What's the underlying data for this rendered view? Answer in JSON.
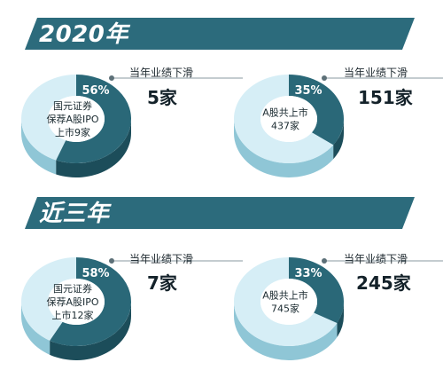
{
  "sections": [
    {
      "title": "2020年"
    },
    {
      "title": "近三年"
    }
  ],
  "colors": {
    "banner": "#2c6b7c",
    "highlight": "#2a6878",
    "highlight_side": "#1c4d5a",
    "rest_top": "#d6eef6",
    "rest_side": "#8fc6d6",
    "center": "#ffffff",
    "callout_line": "#8a9aa2"
  },
  "chart_data": [
    {
      "type": "pie",
      "group": "2020年",
      "center_label": [
        "国元证券",
        "保荐A股IPO",
        "上市9家"
      ],
      "percent_label": "56%",
      "values": [
        56,
        44
      ],
      "callout": {
        "label": "当年业绩下滑",
        "value": "5家"
      }
    },
    {
      "type": "pie",
      "group": "2020年",
      "center_label": [
        "A股共上市",
        "437家"
      ],
      "percent_label": "35%",
      "values": [
        35,
        65
      ],
      "callout": {
        "label": "当年业绩下滑",
        "value": "151家"
      }
    },
    {
      "type": "pie",
      "group": "近三年",
      "center_label": [
        "国元证券",
        "保荐A股IPO",
        "上市12家"
      ],
      "percent_label": "58%",
      "values": [
        58,
        42
      ],
      "callout": {
        "label": "当年业绩下滑",
        "value": "7家"
      }
    },
    {
      "type": "pie",
      "group": "近三年",
      "center_label": [
        "A股共上市",
        "745家"
      ],
      "percent_label": "33%",
      "values": [
        33,
        67
      ],
      "callout": {
        "label": "当年业绩下滑",
        "value": "245家"
      }
    }
  ]
}
